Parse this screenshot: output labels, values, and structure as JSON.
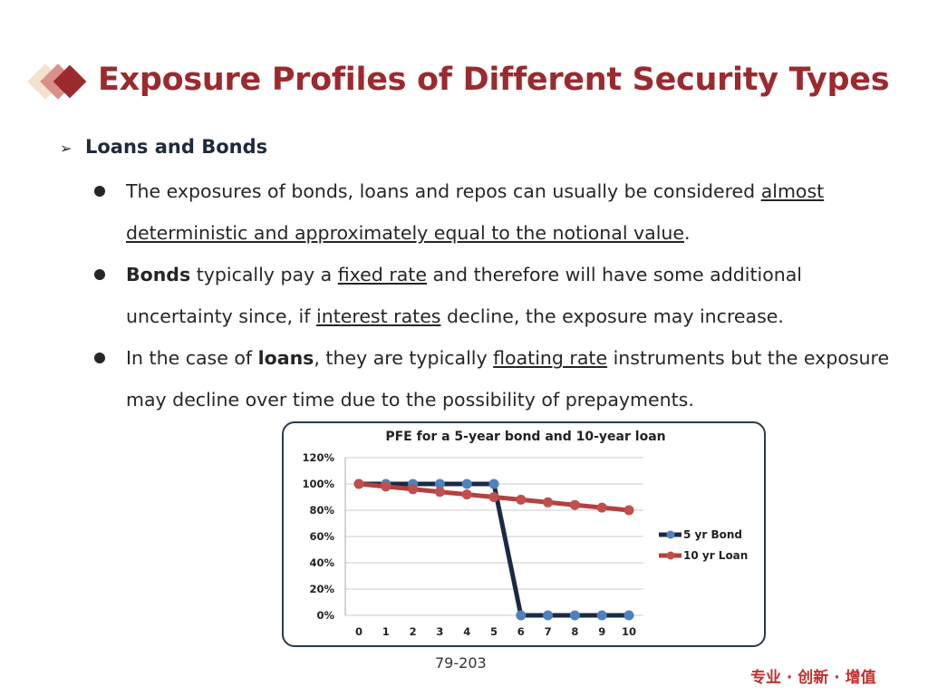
{
  "title": "Exposure Profiles of Different Security Types",
  "section": "Loans and Bonds",
  "bullets": [
    {
      "a": "The exposures of bonds, loans and repos can usually be considered ",
      "u": "almost deterministic and approximately equal to the notional value",
      "b": "."
    },
    {
      "bold": "Bonds",
      "a": " typically pay a ",
      "u1": "fixed rate",
      "b": " and therefore will have some additional uncertainty since, if ",
      "u2": "interest rates",
      "c": " decline, the exposure may increase."
    },
    {
      "a": "In the case of ",
      "bold": "loans",
      "b": ", they are typically ",
      "u": "floating rate",
      "c": " instruments but the exposure may decline over time due to the possibility of prepayments."
    }
  ],
  "chart_data": {
    "type": "line",
    "title": "PFE for a 5-year bond and 10-year loan",
    "x": [
      0,
      1,
      2,
      3,
      4,
      5,
      6,
      7,
      8,
      9,
      10
    ],
    "yticks": [
      "0%",
      "20%",
      "40%",
      "60%",
      "80%",
      "100%",
      "120%"
    ],
    "ylim": [
      0,
      120
    ],
    "series": [
      {
        "name": "5 yr Bond",
        "color": "#1b2a44",
        "marker": "#4f81bd",
        "values": [
          100,
          100,
          100,
          100,
          100,
          100,
          0,
          0,
          0,
          0,
          0
        ]
      },
      {
        "name": "10 yr Loan",
        "color": "#b3413f",
        "marker": "#c0504d",
        "values": [
          100,
          98,
          96,
          94,
          92,
          90,
          88,
          86,
          84,
          82,
          80
        ]
      }
    ],
    "legend": "right"
  },
  "page_number": "79-203",
  "slogan": "专业 · 创新 · 增值"
}
